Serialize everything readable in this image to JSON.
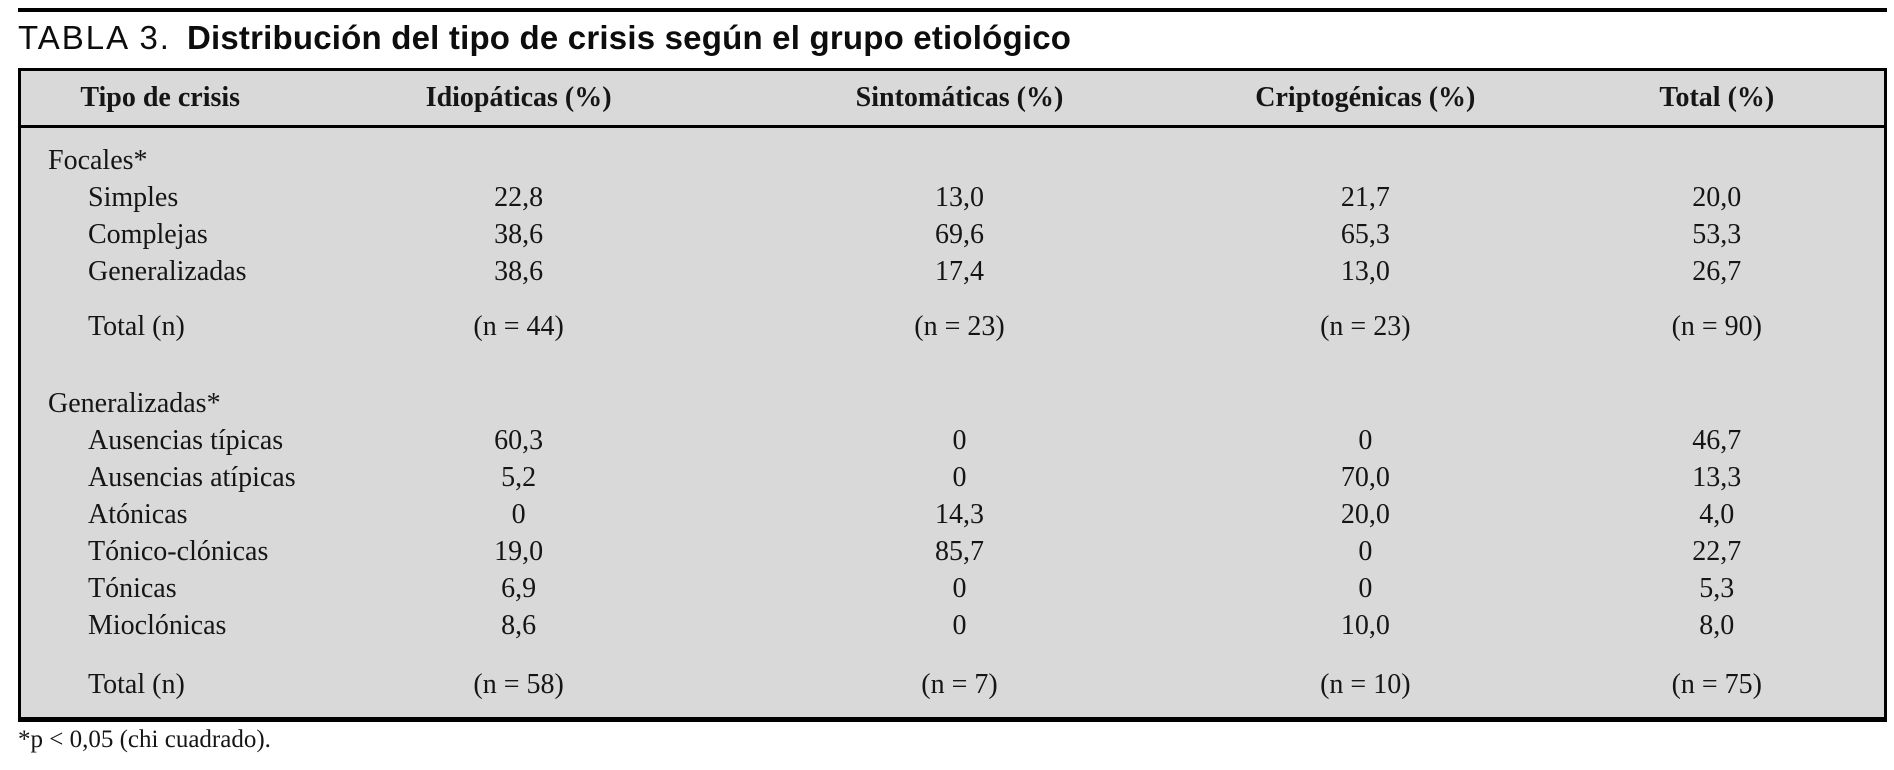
{
  "title": {
    "label": "TABLA 3.",
    "text": "Distribución del tipo de crisis según el grupo etiológico"
  },
  "table": {
    "columns": [
      "Tipo de crisis",
      "Idiopáticas (%)",
      "Sintomáticas (%)",
      "Criptogénicas (%)",
      "Total (%)"
    ],
    "sections": [
      {
        "header": "Focales*",
        "rows": [
          {
            "label": "Simples",
            "values": [
              "22,8",
              "13,0",
              "21,7",
              "20,0"
            ]
          },
          {
            "label": "Complejas",
            "values": [
              "38,6",
              "69,6",
              "65,3",
              "53,3"
            ]
          },
          {
            "label": "Generalizadas",
            "values": [
              "38,6",
              "17,4",
              "13,0",
              "26,7"
            ]
          }
        ],
        "total": {
          "label": "Total (n)",
          "values": [
            "(n = 44)",
            "(n = 23)",
            "(n = 23)",
            "(n = 90)"
          ]
        }
      },
      {
        "header": "Generalizadas*",
        "rows": [
          {
            "label": "Ausencias típicas",
            "values": [
              "60,3",
              "0",
              "0",
              "46,7"
            ]
          },
          {
            "label": "Ausencias atípicas",
            "values": [
              "5,2",
              "0",
              "70,0",
              "13,3"
            ]
          },
          {
            "label": "Atónicas",
            "values": [
              "0",
              "14,3",
              "20,0",
              "4,0"
            ]
          },
          {
            "label": "Tónico-clónicas",
            "values": [
              "19,0",
              "85,7",
              "0",
              "22,7"
            ]
          },
          {
            "label": "Tónicas",
            "values": [
              "6,9",
              "0",
              "0",
              "5,3"
            ]
          },
          {
            "label": "Mioclónicas",
            "values": [
              "8,6",
              "0",
              "10,0",
              "8,0"
            ]
          }
        ],
        "total": {
          "label": "Total (n)",
          "values": [
            "(n = 58)",
            "(n = 7)",
            "(n = 10)",
            "(n = 75)"
          ]
        }
      }
    ]
  },
  "footnote": "*p < 0,05 (chi cuadrado).",
  "colors": {
    "table_background": "#d9d9d9",
    "rule": "#000000",
    "text": "#151515"
  }
}
